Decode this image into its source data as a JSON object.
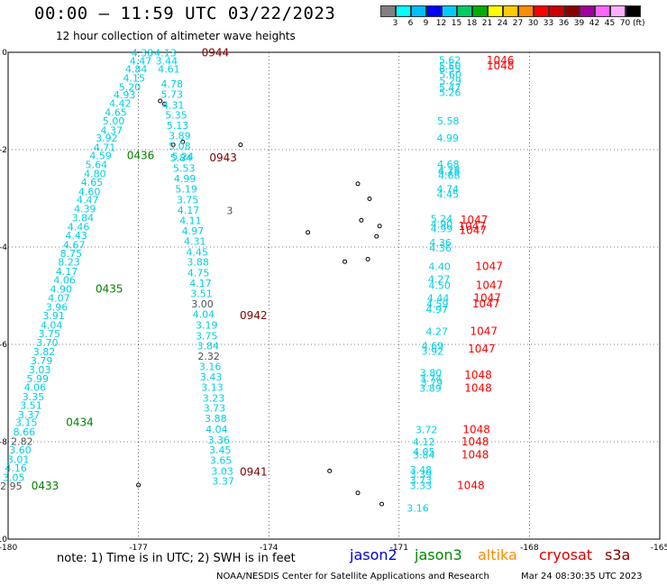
{
  "header": {
    "title": "00:00 – 11:59 UTC 03/22/2023",
    "subtitle": "12 hour collection of altimeter wave heights"
  },
  "colorbar": {
    "colors": [
      "#808080",
      "#00ffff",
      "#00bfff",
      "#0000ff",
      "#00ccff",
      "#00cc66",
      "#00b000",
      "#ffff00",
      "#ffcc00",
      "#ff8c00",
      "#ff0000",
      "#cc0000",
      "#8b0000",
      "#a000a0",
      "#ff66ff",
      "#ffb0ff",
      "#000000"
    ],
    "labels": [
      "3",
      "6",
      "9",
      "12",
      "15",
      "18",
      "21",
      "24",
      "27",
      "30",
      "33",
      "36",
      "39",
      "42",
      "45",
      "70"
    ],
    "unit": "(ft)"
  },
  "chart_data": {
    "type": "scatter",
    "xlim": [
      -180,
      -165
    ],
    "ylim": [
      -10,
      0
    ],
    "x_ticks": [
      "-180",
      "-177",
      "-174",
      "-171",
      "-168",
      "-165"
    ],
    "y_ticks": [
      "0",
      "-2",
      "-4",
      "-6",
      "-8",
      "-10"
    ],
    "grid": true,
    "colors": {
      "cyan": "#00d0e0",
      "gray": "#505050",
      "green": "#008000",
      "darkred": "#800000",
      "red": "#ff0000"
    },
    "labels": [
      {
        "x": -176.91,
        "y": -0.01,
        "t": "4.38",
        "c": "cyan"
      },
      {
        "x": -176.38,
        "y": -0.01,
        "t": "4.13",
        "c": "cyan"
      },
      {
        "x": -175.23,
        "y": -0.01,
        "t": "0944",
        "c": "darkred"
      },
      {
        "x": -176.95,
        "y": -0.18,
        "t": "4.47",
        "c": "cyan"
      },
      {
        "x": -176.35,
        "y": -0.18,
        "t": "3.44",
        "c": "cyan"
      },
      {
        "x": -177.05,
        "y": -0.34,
        "t": "4.84",
        "c": "cyan"
      },
      {
        "x": -176.3,
        "y": -0.34,
        "t": "4.61",
        "c": "cyan"
      },
      {
        "x": -177.1,
        "y": -0.53,
        "t": "4.15",
        "c": "cyan"
      },
      {
        "x": -176.23,
        "y": -0.65,
        "t": "4.78",
        "c": "cyan"
      },
      {
        "x": -177.2,
        "y": -0.71,
        "t": "5.20",
        "c": "cyan"
      },
      {
        "x": -176.23,
        "y": -0.86,
        "t": "5.73",
        "c": "cyan"
      },
      {
        "x": -177.32,
        "y": -0.87,
        "t": "4.93",
        "c": "cyan"
      },
      {
        "x": -177.42,
        "y": -1.05,
        "t": "4.42",
        "c": "cyan"
      },
      {
        "x": -176.2,
        "y": -1.08,
        "t": "4.31",
        "c": "cyan"
      },
      {
        "x": -177.52,
        "y": -1.23,
        "t": "4.65",
        "c": "cyan"
      },
      {
        "x": -176.13,
        "y": -1.29,
        "t": "5.35",
        "c": "cyan"
      },
      {
        "x": -177.57,
        "y": -1.41,
        "t": "5.00",
        "c": "cyan"
      },
      {
        "x": -176.1,
        "y": -1.5,
        "t": "5.13",
        "c": "cyan"
      },
      {
        "x": -177.62,
        "y": -1.6,
        "t": "4.37",
        "c": "cyan"
      },
      {
        "x": -176.05,
        "y": -1.71,
        "t": "3.89",
        "c": "cyan"
      },
      {
        "x": -177.73,
        "y": -1.76,
        "t": "3.92",
        "c": "cyan"
      },
      {
        "x": -176.05,
        "y": -1.93,
        "t": "5.08",
        "c": "cyan"
      },
      {
        "x": -177.78,
        "y": -1.95,
        "t": "4.71",
        "c": "cyan"
      },
      {
        "x": -177.87,
        "y": -2.12,
        "t": "4.59",
        "c": "cyan"
      },
      {
        "x": -176.95,
        "y": -2.12,
        "t": "0436",
        "c": "green"
      },
      {
        "x": -175.98,
        "y": -2.14,
        "t": "5.24",
        "c": "cyan"
      },
      {
        "x": -176.02,
        "y": -2.17,
        "t": "5.84",
        "c": "cyan"
      },
      {
        "x": -175.05,
        "y": -2.17,
        "t": "0943",
        "c": "darkred"
      },
      {
        "x": -177.97,
        "y": -2.31,
        "t": "5.64",
        "c": "cyan"
      },
      {
        "x": -175.95,
        "y": -2.38,
        "t": "5.53",
        "c": "cyan"
      },
      {
        "x": -178.0,
        "y": -2.49,
        "t": "4.80",
        "c": "cyan"
      },
      {
        "x": -175.93,
        "y": -2.59,
        "t": "4.99",
        "c": "cyan"
      },
      {
        "x": -178.07,
        "y": -2.67,
        "t": "4.65",
        "c": "cyan"
      },
      {
        "x": -175.9,
        "y": -2.81,
        "t": "5.19",
        "c": "cyan"
      },
      {
        "x": -178.13,
        "y": -2.86,
        "t": "4.60",
        "c": "cyan"
      },
      {
        "x": -178.17,
        "y": -3.03,
        "t": "4.47",
        "c": "cyan"
      },
      {
        "x": -175.87,
        "y": -3.03,
        "t": "3.75",
        "c": "cyan"
      },
      {
        "x": -178.23,
        "y": -3.21,
        "t": "4.39",
        "c": "cyan"
      },
      {
        "x": -175.85,
        "y": -3.24,
        "t": "4.17",
        "c": "cyan"
      },
      {
        "x": -174.9,
        "y": -3.25,
        "t": "3",
        "c": "gray"
      },
      {
        "x": -178.28,
        "y": -3.4,
        "t": "3.84",
        "c": "cyan"
      },
      {
        "x": -175.8,
        "y": -3.45,
        "t": "4.11",
        "c": "cyan"
      },
      {
        "x": -178.38,
        "y": -3.58,
        "t": "4.46",
        "c": "cyan"
      },
      {
        "x": -175.75,
        "y": -3.67,
        "t": "4.97",
        "c": "cyan"
      },
      {
        "x": -178.43,
        "y": -3.76,
        "t": "4.43",
        "c": "cyan"
      },
      {
        "x": -175.7,
        "y": -3.88,
        "t": "4.31",
        "c": "cyan"
      },
      {
        "x": -178.48,
        "y": -3.95,
        "t": "4.67",
        "c": "cyan"
      },
      {
        "x": -178.55,
        "y": -4.13,
        "t": "8.75",
        "c": "cyan"
      },
      {
        "x": -175.65,
        "y": -4.1,
        "t": "4.45",
        "c": "cyan"
      },
      {
        "x": -178.6,
        "y": -4.31,
        "t": "8.23",
        "c": "cyan"
      },
      {
        "x": -175.63,
        "y": -4.31,
        "t": "3.88",
        "c": "cyan"
      },
      {
        "x": -178.65,
        "y": -4.5,
        "t": "4.17",
        "c": "cyan"
      },
      {
        "x": -175.62,
        "y": -4.53,
        "t": "4.75",
        "c": "cyan"
      },
      {
        "x": -178.7,
        "y": -4.68,
        "t": "4.06",
        "c": "cyan"
      },
      {
        "x": -175.57,
        "y": -4.74,
        "t": "4.17",
        "c": "cyan"
      },
      {
        "x": -178.78,
        "y": -4.86,
        "t": "4.90",
        "c": "cyan"
      },
      {
        "x": -177.67,
        "y": -4.86,
        "t": "0435",
        "c": "green"
      },
      {
        "x": -175.55,
        "y": -4.95,
        "t": "3.51",
        "c": "cyan"
      },
      {
        "x": -178.83,
        "y": -5.05,
        "t": "4.07",
        "c": "cyan"
      },
      {
        "x": -175.53,
        "y": -5.17,
        "t": "3.00",
        "c": "gray"
      },
      {
        "x": -178.88,
        "y": -5.23,
        "t": "3.96",
        "c": "cyan"
      },
      {
        "x": -175.5,
        "y": -5.38,
        "t": "4.04",
        "c": "cyan"
      },
      {
        "x": -178.95,
        "y": -5.41,
        "t": "3.91",
        "c": "cyan"
      },
      {
        "x": -174.35,
        "y": -5.41,
        "t": "0942",
        "c": "darkred"
      },
      {
        "x": -179.0,
        "y": -5.6,
        "t": "4.04",
        "c": "cyan"
      },
      {
        "x": -175.43,
        "y": -5.6,
        "t": "3.19",
        "c": "cyan"
      },
      {
        "x": -179.05,
        "y": -5.78,
        "t": "3.75",
        "c": "cyan"
      },
      {
        "x": -175.43,
        "y": -5.82,
        "t": "3.75",
        "c": "cyan"
      },
      {
        "x": -179.1,
        "y": -5.96,
        "t": "3.70",
        "c": "cyan"
      },
      {
        "x": -175.4,
        "y": -6.03,
        "t": "3.84",
        "c": "cyan"
      },
      {
        "x": -179.17,
        "y": -6.15,
        "t": "3.82",
        "c": "cyan"
      },
      {
        "x": -175.38,
        "y": -6.24,
        "t": "2.32",
        "c": "gray"
      },
      {
        "x": -179.23,
        "y": -6.33,
        "t": "3.79",
        "c": "cyan"
      },
      {
        "x": -175.35,
        "y": -6.45,
        "t": "3.16",
        "c": "cyan"
      },
      {
        "x": -179.27,
        "y": -6.52,
        "t": "3.03",
        "c": "cyan"
      },
      {
        "x": -175.33,
        "y": -6.67,
        "t": "3.43",
        "c": "cyan"
      },
      {
        "x": -179.32,
        "y": -6.7,
        "t": "5.99",
        "c": "cyan"
      },
      {
        "x": -175.3,
        "y": -6.88,
        "t": "3.13",
        "c": "cyan"
      },
      {
        "x": -179.38,
        "y": -6.88,
        "t": "4.06",
        "c": "cyan"
      },
      {
        "x": -179.42,
        "y": -7.07,
        "t": "3.35",
        "c": "cyan"
      },
      {
        "x": -175.27,
        "y": -7.1,
        "t": "3.23",
        "c": "cyan"
      },
      {
        "x": -179.47,
        "y": -7.25,
        "t": "3.51",
        "c": "cyan"
      },
      {
        "x": -175.25,
        "y": -7.31,
        "t": "3.73",
        "c": "cyan"
      },
      {
        "x": -179.52,
        "y": -7.44,
        "t": "3.37",
        "c": "cyan"
      },
      {
        "x": -175.22,
        "y": -7.52,
        "t": "3.88",
        "c": "cyan"
      },
      {
        "x": -179.58,
        "y": -7.6,
        "t": "3.15",
        "c": "cyan"
      },
      {
        "x": -178.35,
        "y": -7.6,
        "t": "0434",
        "c": "green"
      },
      {
        "x": -175.2,
        "y": -7.74,
        "t": "4.04",
        "c": "cyan"
      },
      {
        "x": -179.63,
        "y": -7.8,
        "t": "8.66",
        "c": "cyan"
      },
      {
        "x": -179.68,
        "y": -7.99,
        "t": "2.82",
        "c": "gray"
      },
      {
        "x": -175.15,
        "y": -7.96,
        "t": "3.36",
        "c": "cyan"
      },
      {
        "x": -179.72,
        "y": -8.17,
        "t": "3.60",
        "c": "cyan"
      },
      {
        "x": -175.12,
        "y": -8.17,
        "t": "3.45",
        "c": "cyan"
      },
      {
        "x": -179.77,
        "y": -8.36,
        "t": "3.01",
        "c": "cyan"
      },
      {
        "x": -175.1,
        "y": -8.38,
        "t": "3.65",
        "c": "cyan"
      },
      {
        "x": -179.82,
        "y": -8.54,
        "t": "4.16",
        "c": "cyan"
      },
      {
        "x": -175.07,
        "y": -8.6,
        "t": "3.03",
        "c": "cyan"
      },
      {
        "x": -174.35,
        "y": -8.62,
        "t": "0941",
        "c": "darkred"
      },
      {
        "x": -179.87,
        "y": -8.73,
        "t": "3.05",
        "c": "cyan"
      },
      {
        "x": -175.05,
        "y": -8.81,
        "t": "3.37",
        "c": "cyan"
      },
      {
        "x": -179.93,
        "y": -8.91,
        "t": "2.95",
        "c": "gray"
      },
      {
        "x": -179.15,
        "y": -8.91,
        "t": "0433",
        "c": "green"
      },
      {
        "x": -169.83,
        "y": -0.16,
        "t": "5.62",
        "c": "cyan"
      },
      {
        "x": -168.67,
        "y": -0.17,
        "t": "1046",
        "c": "red"
      },
      {
        "x": -169.83,
        "y": -0.28,
        "t": "5.50",
        "c": "cyan"
      },
      {
        "x": -169.83,
        "y": -0.34,
        "t": "6.55",
        "c": "cyan"
      },
      {
        "x": -168.67,
        "y": -0.28,
        "t": "1048",
        "c": "red"
      },
      {
        "x": -169.82,
        "y": -0.45,
        "t": "5.60",
        "c": "cyan"
      },
      {
        "x": -169.82,
        "y": -0.58,
        "t": "5.29",
        "c": "cyan"
      },
      {
        "x": -169.83,
        "y": -0.72,
        "t": "5.47",
        "c": "cyan"
      },
      {
        "x": -169.83,
        "y": -0.82,
        "t": "5.26",
        "c": "cyan"
      },
      {
        "x": -169.87,
        "y": -1.41,
        "t": "5.58",
        "c": "cyan"
      },
      {
        "x": -169.88,
        "y": -1.76,
        "t": "4.99",
        "c": "cyan"
      },
      {
        "x": -169.87,
        "y": -2.3,
        "t": "4.68",
        "c": "cyan"
      },
      {
        "x": -169.85,
        "y": -2.42,
        "t": "4.28",
        "c": "cyan"
      },
      {
        "x": -169.85,
        "y": -2.45,
        "t": "4.15",
        "c": "cyan"
      },
      {
        "x": -169.85,
        "y": -2.53,
        "t": "4.68",
        "c": "cyan"
      },
      {
        "x": -169.88,
        "y": -2.81,
        "t": "4.74",
        "c": "cyan"
      },
      {
        "x": -169.88,
        "y": -2.92,
        "t": "4.45",
        "c": "cyan"
      },
      {
        "x": -170.02,
        "y": -3.42,
        "t": "5.24",
        "c": "cyan"
      },
      {
        "x": -170.02,
        "y": -3.53,
        "t": "4.90",
        "c": "cyan"
      },
      {
        "x": -170.02,
        "y": -3.62,
        "t": "4.99",
        "c": "cyan"
      },
      {
        "x": -169.27,
        "y": -3.44,
        "t": "1047",
        "c": "red"
      },
      {
        "x": -169.32,
        "y": -3.57,
        "t": "1047",
        "c": "red"
      },
      {
        "x": -169.3,
        "y": -3.66,
        "t": "1047",
        "c": "red"
      },
      {
        "x": -170.05,
        "y": -3.91,
        "t": "4.36",
        "c": "cyan"
      },
      {
        "x": -170.05,
        "y": -4.02,
        "t": "4.36",
        "c": "cyan"
      },
      {
        "x": -170.07,
        "y": -4.4,
        "t": "4.40",
        "c": "cyan"
      },
      {
        "x": -168.93,
        "y": -4.4,
        "t": "1047",
        "c": "red"
      },
      {
        "x": -170.08,
        "y": -4.66,
        "t": "4.27",
        "c": "cyan"
      },
      {
        "x": -170.07,
        "y": -4.79,
        "t": "4.50",
        "c": "cyan"
      },
      {
        "x": -168.92,
        "y": -4.79,
        "t": "1047",
        "c": "red"
      },
      {
        "x": -170.1,
        "y": -5.05,
        "t": "4.44",
        "c": "cyan"
      },
      {
        "x": -170.12,
        "y": -5.17,
        "t": "4.59",
        "c": "cyan"
      },
      {
        "x": -170.13,
        "y": -5.28,
        "t": "4.97",
        "c": "cyan"
      },
      {
        "x": -168.97,
        "y": -5.05,
        "t": "1047",
        "c": "red"
      },
      {
        "x": -169.0,
        "y": -5.17,
        "t": "1047",
        "c": "red"
      },
      {
        "x": -170.13,
        "y": -5.73,
        "t": "4.27",
        "c": "cyan"
      },
      {
        "x": -169.05,
        "y": -5.73,
        "t": "1047",
        "c": "red"
      },
      {
        "x": -170.23,
        "y": -6.03,
        "t": "4.69",
        "c": "cyan"
      },
      {
        "x": -170.23,
        "y": -6.14,
        "t": "3.92",
        "c": "cyan"
      },
      {
        "x": -169.1,
        "y": -6.09,
        "t": "1047",
        "c": "red"
      },
      {
        "x": -170.27,
        "y": -6.58,
        "t": "3.80",
        "c": "cyan"
      },
      {
        "x": -170.27,
        "y": -6.69,
        "t": "3.74",
        "c": "cyan"
      },
      {
        "x": -170.25,
        "y": -6.79,
        "t": "3.79",
        "c": "cyan"
      },
      {
        "x": -170.28,
        "y": -6.9,
        "t": "3.89",
        "c": "cyan"
      },
      {
        "x": -169.18,
        "y": -6.63,
        "t": "1048",
        "c": "red"
      },
      {
        "x": -169.18,
        "y": -6.9,
        "t": "1048",
        "c": "red"
      },
      {
        "x": -170.37,
        "y": -7.75,
        "t": "3.72",
        "c": "cyan"
      },
      {
        "x": -169.22,
        "y": -7.75,
        "t": "1048",
        "c": "red"
      },
      {
        "x": -170.43,
        "y": -8.0,
        "t": "4.12",
        "c": "cyan"
      },
      {
        "x": -169.25,
        "y": -8.0,
        "t": "1048",
        "c": "red"
      },
      {
        "x": -170.43,
        "y": -8.2,
        "t": "4.05",
        "c": "cyan"
      },
      {
        "x": -170.43,
        "y": -8.27,
        "t": "3.84",
        "c": "cyan"
      },
      {
        "x": -169.25,
        "y": -8.27,
        "t": "1048",
        "c": "red"
      },
      {
        "x": -170.5,
        "y": -8.57,
        "t": "3.48",
        "c": "cyan"
      },
      {
        "x": -170.5,
        "y": -8.67,
        "t": "3.39",
        "c": "cyan"
      },
      {
        "x": -170.5,
        "y": -8.79,
        "t": "3.73",
        "c": "cyan"
      },
      {
        "x": -170.5,
        "y": -8.9,
        "t": "3.33",
        "c": "cyan"
      },
      {
        "x": -169.35,
        "y": -8.9,
        "t": "1048",
        "c": "red"
      },
      {
        "x": -170.57,
        "y": -9.36,
        "t": "3.16",
        "c": "cyan"
      }
    ],
    "land_markers": [
      {
        "x": -174.65,
        "y": -1.9
      },
      {
        "x": -176.2,
        "y": -1.9
      },
      {
        "x": -171.95,
        "y": -2.7
      },
      {
        "x": -171.68,
        "y": -3.01
      },
      {
        "x": -171.87,
        "y": -3.45
      },
      {
        "x": -171.45,
        "y": -3.57
      },
      {
        "x": -171.52,
        "y": -3.78
      },
      {
        "x": -173.1,
        "y": -3.7
      },
      {
        "x": -172.25,
        "y": -4.3
      },
      {
        "x": -171.72,
        "y": -4.25
      },
      {
        "x": -172.6,
        "y": -8.6
      },
      {
        "x": -171.95,
        "y": -9.05
      },
      {
        "x": -171.4,
        "y": -9.28
      },
      {
        "x": -176.5,
        "y": -1.0
      },
      {
        "x": -176.4,
        "y": -1.06
      },
      {
        "x": -175.98,
        "y": -1.84
      },
      {
        "x": -177.0,
        "y": -8.89
      }
    ]
  },
  "footer": {
    "note": "note: 1) Time is in UTC; 2) SWH is in feet",
    "missions": [
      {
        "name": "jason2",
        "color": "#0000dd"
      },
      {
        "name": "jason3",
        "color": "#008800"
      },
      {
        "name": "altika",
        "color": "#ff8c00"
      },
      {
        "name": "cryosat",
        "color": "#dd0000"
      },
      {
        "name": "s3a",
        "color": "#800000"
      }
    ],
    "credit": "NOAA/NESDIS Center for Satellite Applications and Research",
    "timestamp": "Mar 24 08:30:35 UTC 2023"
  }
}
